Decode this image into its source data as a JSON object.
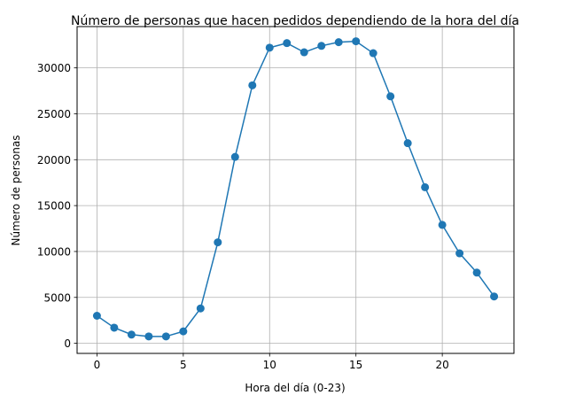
{
  "chart_data": {
    "type": "line",
    "title": "Número de personas que hacen pedidos dependiendo de la hora del día",
    "xlabel": "Hora del día (0-23)",
    "ylabel": "Número de personas",
    "xlim": [
      -1.15,
      24.15
    ],
    "ylim": [
      -1100,
      34500
    ],
    "xticks": [
      0,
      5,
      10,
      15,
      20
    ],
    "yticks": [
      0,
      5000,
      10000,
      15000,
      20000,
      25000,
      30000
    ],
    "grid": true,
    "legend": false,
    "color": "#1f77b4",
    "marker": "circle",
    "x": [
      0,
      1,
      2,
      3,
      4,
      5,
      6,
      7,
      8,
      9,
      10,
      11,
      12,
      13,
      14,
      15,
      16,
      17,
      18,
      19,
      20,
      21,
      22,
      23
    ],
    "y": [
      3000,
      1700,
      950,
      750,
      750,
      1300,
      3800,
      11000,
      20300,
      28100,
      32200,
      32700,
      31700,
      32400,
      32800,
      32900,
      31600,
      26900,
      21800,
      17000,
      12900,
      9800,
      7700,
      5100
    ]
  }
}
